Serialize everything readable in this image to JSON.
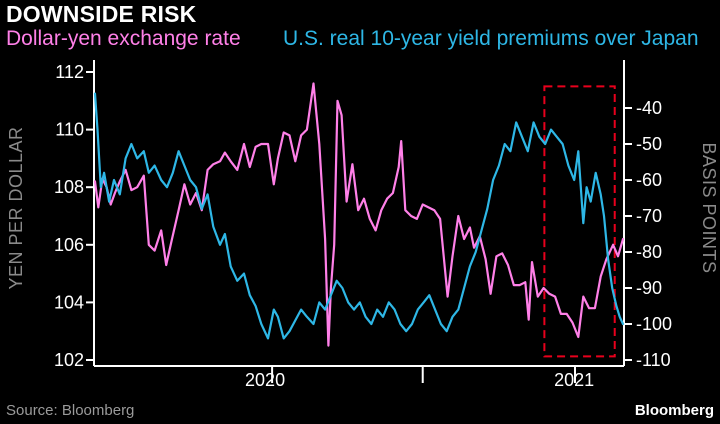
{
  "header": {
    "title": "DOWNSIDE RISK",
    "subtitle_left": "Dollar-yen exchange rate",
    "subtitle_right": "U.S. real 10-year yield premiums over Japan"
  },
  "footer": {
    "source": "Source: Bloomberg",
    "brand": "Bloomberg"
  },
  "colors": {
    "background": "#000000",
    "usdjpy": "#ff80e8",
    "yield_premium": "#2eb7e6",
    "highlight_box": "#e8001c",
    "axis": "#ffffff"
  },
  "chart_data": {
    "type": "line",
    "title": "DOWNSIDE RISK",
    "ylabel_left": "YEN PER DOLLAR",
    "ylabel_right": "BASIS POINTS",
    "ylim_left": [
      102,
      112
    ],
    "yticks_left": [
      102,
      104,
      106,
      108,
      110,
      112
    ],
    "ylim_right": [
      -110,
      -30
    ],
    "yticks_right": [
      -40,
      -50,
      -60,
      -70,
      -80,
      -90,
      -100,
      -110
    ],
    "xlim": [
      "2019-06-01",
      "2021-02-28"
    ],
    "xtick_labels": [
      {
        "date": "2020-01-01",
        "label": "2020"
      },
      {
        "date": "2021-01-01",
        "label": "2021"
      }
    ],
    "xtick_marks": [
      "2020-01-01",
      "2020-07-01",
      "2021-01-01"
    ],
    "highlight_box": {
      "x": [
        "2020-11-25",
        "2021-02-18"
      ],
      "y_right": [
        -109,
        -34
      ]
    },
    "series": [
      {
        "name": "Dollar-yen exchange rate",
        "axis": "left",
        "color": "#ff80e8",
        "points": [
          [
            "2019-06-01",
            108.2
          ],
          [
            "2019-06-05",
            107.3
          ],
          [
            "2019-06-10",
            108.3
          ],
          [
            "2019-06-15",
            108.0
          ],
          [
            "2019-06-20",
            107.4
          ],
          [
            "2019-06-25",
            107.8
          ],
          [
            "2019-07-01",
            108.2
          ],
          [
            "2019-07-08",
            108.6
          ],
          [
            "2019-07-15",
            107.9
          ],
          [
            "2019-07-22",
            108.0
          ],
          [
            "2019-07-30",
            108.4
          ],
          [
            "2019-08-05",
            106.0
          ],
          [
            "2019-08-12",
            105.8
          ],
          [
            "2019-08-20",
            106.5
          ],
          [
            "2019-08-26",
            105.3
          ],
          [
            "2019-09-02",
            106.2
          ],
          [
            "2019-09-10",
            107.2
          ],
          [
            "2019-09-17",
            108.1
          ],
          [
            "2019-09-24",
            107.4
          ],
          [
            "2019-10-01",
            107.8
          ],
          [
            "2019-10-08",
            107.2
          ],
          [
            "2019-10-15",
            108.6
          ],
          [
            "2019-10-22",
            108.8
          ],
          [
            "2019-10-30",
            108.9
          ],
          [
            "2019-11-05",
            109.2
          ],
          [
            "2019-11-12",
            108.9
          ],
          [
            "2019-11-20",
            108.6
          ],
          [
            "2019-11-28",
            109.5
          ],
          [
            "2019-12-05",
            108.7
          ],
          [
            "2019-12-12",
            109.4
          ],
          [
            "2019-12-19",
            109.5
          ],
          [
            "2019-12-27",
            109.5
          ],
          [
            "2020-01-03",
            108.1
          ],
          [
            "2020-01-08",
            109.0
          ],
          [
            "2020-01-15",
            109.9
          ],
          [
            "2020-01-22",
            109.8
          ],
          [
            "2020-01-29",
            108.9
          ],
          [
            "2020-02-05",
            109.8
          ],
          [
            "2020-02-12",
            110.0
          ],
          [
            "2020-02-20",
            111.6
          ],
          [
            "2020-02-27",
            109.5
          ],
          [
            "2020-03-05",
            106.2
          ],
          [
            "2020-03-09",
            102.5
          ],
          [
            "2020-03-12",
            104.5
          ],
          [
            "2020-03-16",
            106.0
          ],
          [
            "2020-03-20",
            111.0
          ],
          [
            "2020-03-25",
            110.5
          ],
          [
            "2020-03-31",
            107.5
          ],
          [
            "2020-04-07",
            108.8
          ],
          [
            "2020-04-14",
            107.2
          ],
          [
            "2020-04-21",
            107.6
          ],
          [
            "2020-04-28",
            106.9
          ],
          [
            "2020-05-05",
            106.5
          ],
          [
            "2020-05-12",
            107.2
          ],
          [
            "2020-05-19",
            107.6
          ],
          [
            "2020-05-26",
            107.8
          ],
          [
            "2020-06-02",
            108.7
          ],
          [
            "2020-06-05",
            109.6
          ],
          [
            "2020-06-10",
            107.2
          ],
          [
            "2020-06-17",
            107.0
          ],
          [
            "2020-06-24",
            106.9
          ],
          [
            "2020-07-01",
            107.4
          ],
          [
            "2020-07-08",
            107.3
          ],
          [
            "2020-07-15",
            107.2
          ],
          [
            "2020-07-22",
            106.9
          ],
          [
            "2020-07-31",
            104.2
          ],
          [
            "2020-08-06",
            105.6
          ],
          [
            "2020-08-13",
            107.0
          ],
          [
            "2020-08-20",
            106.2
          ],
          [
            "2020-08-27",
            106.6
          ],
          [
            "2020-09-01",
            105.9
          ],
          [
            "2020-09-08",
            106.3
          ],
          [
            "2020-09-15",
            105.5
          ],
          [
            "2020-09-21",
            104.3
          ],
          [
            "2020-09-28",
            105.6
          ],
          [
            "2020-10-05",
            105.7
          ],
          [
            "2020-10-12",
            105.3
          ],
          [
            "2020-10-19",
            104.6
          ],
          [
            "2020-10-26",
            104.6
          ],
          [
            "2020-11-02",
            104.7
          ],
          [
            "2020-11-06",
            103.4
          ],
          [
            "2020-11-10",
            105.4
          ],
          [
            "2020-11-17",
            104.2
          ],
          [
            "2020-11-24",
            104.5
          ],
          [
            "2020-12-01",
            104.3
          ],
          [
            "2020-12-08",
            104.2
          ],
          [
            "2020-12-15",
            103.6
          ],
          [
            "2020-12-22",
            103.6
          ],
          [
            "2020-12-29",
            103.3
          ],
          [
            "2021-01-05",
            102.8
          ],
          [
            "2021-01-11",
            104.2
          ],
          [
            "2021-01-18",
            103.8
          ],
          [
            "2021-01-25",
            103.8
          ],
          [
            "2021-02-01",
            104.9
          ],
          [
            "2021-02-08",
            105.5
          ],
          [
            "2021-02-16",
            106.0
          ],
          [
            "2021-02-22",
            105.6
          ],
          [
            "2021-02-28",
            106.2
          ]
        ]
      },
      {
        "name": "U.S. real 10-year yield premiums over Japan",
        "axis": "right",
        "color": "#2eb7e6",
        "points": [
          [
            "2019-06-01",
            -36.0
          ],
          [
            "2019-06-04",
            -46.0
          ],
          [
            "2019-06-08",
            -62.0
          ],
          [
            "2019-06-12",
            -58.0
          ],
          [
            "2019-06-18",
            -66.0
          ],
          [
            "2019-06-24",
            -60.0
          ],
          [
            "2019-07-01",
            -64.0
          ],
          [
            "2019-07-08",
            -54.0
          ],
          [
            "2019-07-15",
            -50.0
          ],
          [
            "2019-07-22",
            -54.0
          ],
          [
            "2019-07-30",
            -52.0
          ],
          [
            "2019-08-05",
            -58.0
          ],
          [
            "2019-08-12",
            -56.0
          ],
          [
            "2019-08-20",
            -60.0
          ],
          [
            "2019-08-27",
            -62.0
          ],
          [
            "2019-09-03",
            -58.0
          ],
          [
            "2019-09-10",
            -52.0
          ],
          [
            "2019-09-17",
            -56.0
          ],
          [
            "2019-09-24",
            -60.0
          ],
          [
            "2019-10-01",
            -62.0
          ],
          [
            "2019-10-08",
            -68.0
          ],
          [
            "2019-10-15",
            -64.0
          ],
          [
            "2019-10-22",
            -73.0
          ],
          [
            "2019-10-30",
            -78.0
          ],
          [
            "2019-11-05",
            -75.0
          ],
          [
            "2019-11-12",
            -84.0
          ],
          [
            "2019-11-20",
            -88.0
          ],
          [
            "2019-11-28",
            -86.0
          ],
          [
            "2019-12-05",
            -92.0
          ],
          [
            "2019-12-12",
            -95.0
          ],
          [
            "2019-12-19",
            -100.0
          ],
          [
            "2019-12-27",
            -104.0
          ],
          [
            "2020-01-03",
            -96.0
          ],
          [
            "2020-01-08",
            -98.0
          ],
          [
            "2020-01-15",
            -104.0
          ],
          [
            "2020-01-22",
            -102.0
          ],
          [
            "2020-01-29",
            -99.0
          ],
          [
            "2020-02-05",
            -96.0
          ],
          [
            "2020-02-12",
            -98.0
          ],
          [
            "2020-02-20",
            -100.0
          ],
          [
            "2020-02-27",
            -94.0
          ],
          [
            "2020-03-05",
            -96.0
          ],
          [
            "2020-03-12",
            -92.0
          ],
          [
            "2020-03-19",
            -88.0
          ],
          [
            "2020-03-26",
            -90.0
          ],
          [
            "2020-04-02",
            -94.0
          ],
          [
            "2020-04-09",
            -96.0
          ],
          [
            "2020-04-16",
            -94.0
          ],
          [
            "2020-04-23",
            -98.0
          ],
          [
            "2020-04-30",
            -100.0
          ],
          [
            "2020-05-07",
            -96.0
          ],
          [
            "2020-05-14",
            -98.0
          ],
          [
            "2020-05-21",
            -94.0
          ],
          [
            "2020-05-28",
            -96.0
          ],
          [
            "2020-06-04",
            -100.0
          ],
          [
            "2020-06-11",
            -102.0
          ],
          [
            "2020-06-18",
            -100.0
          ],
          [
            "2020-06-25",
            -96.0
          ],
          [
            "2020-07-02",
            -94.0
          ],
          [
            "2020-07-09",
            -92.0
          ],
          [
            "2020-07-16",
            -96.0
          ],
          [
            "2020-07-23",
            -100.0
          ],
          [
            "2020-07-30",
            -102.0
          ],
          [
            "2020-08-06",
            -98.0
          ],
          [
            "2020-08-13",
            -96.0
          ],
          [
            "2020-08-20",
            -90.0
          ],
          [
            "2020-08-27",
            -84.0
          ],
          [
            "2020-09-03",
            -80.0
          ],
          [
            "2020-09-10",
            -74.0
          ],
          [
            "2020-09-17",
            -68.0
          ],
          [
            "2020-09-24",
            -60.0
          ],
          [
            "2020-10-01",
            -56.0
          ],
          [
            "2020-10-08",
            -50.0
          ],
          [
            "2020-10-15",
            -52.0
          ],
          [
            "2020-10-22",
            -44.0
          ],
          [
            "2020-10-29",
            -48.0
          ],
          [
            "2020-11-05",
            -52.0
          ],
          [
            "2020-11-12",
            -44.0
          ],
          [
            "2020-11-19",
            -48.0
          ],
          [
            "2020-11-26",
            -50.0
          ],
          [
            "2020-12-03",
            -46.0
          ],
          [
            "2020-12-10",
            -48.0
          ],
          [
            "2020-12-17",
            -50.0
          ],
          [
            "2020-12-24",
            -56.0
          ],
          [
            "2020-12-31",
            -60.0
          ],
          [
            "2021-01-05",
            -52.0
          ],
          [
            "2021-01-11",
            -72.0
          ],
          [
            "2021-01-15",
            -62.0
          ],
          [
            "2021-01-20",
            -66.0
          ],
          [
            "2021-01-26",
            -58.0
          ],
          [
            "2021-02-01",
            -64.0
          ],
          [
            "2021-02-05",
            -70.0
          ],
          [
            "2021-02-10",
            -82.0
          ],
          [
            "2021-02-15",
            -90.0
          ],
          [
            "2021-02-20",
            -95.0
          ],
          [
            "2021-02-24",
            -98.0
          ],
          [
            "2021-02-28",
            -100.0
          ]
        ]
      }
    ]
  }
}
